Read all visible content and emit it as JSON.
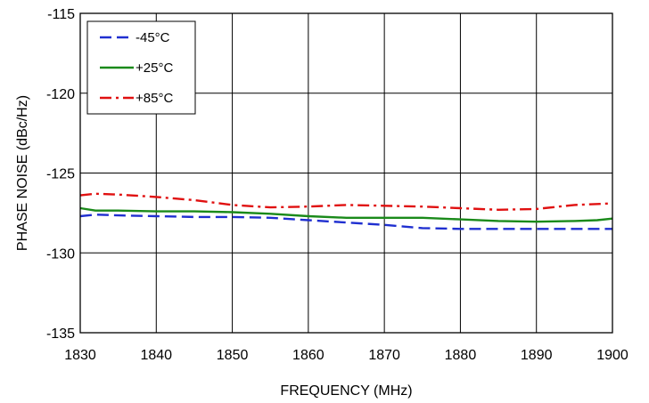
{
  "chart_data": {
    "type": "line",
    "title": "",
    "xlabel": "FREQUENCY (MHz)",
    "ylabel": "PHASE NOISE  (dBc/Hz)",
    "xlim": [
      1830,
      1900
    ],
    "ylim": [
      -135,
      -115
    ],
    "xticks": [
      1830,
      1840,
      1850,
      1860,
      1870,
      1880,
      1890,
      1900
    ],
    "yticks": [
      -115,
      -120,
      -125,
      -130,
      -135
    ],
    "grid": true,
    "legend_position": "top-left",
    "series": [
      {
        "name": "-45°C",
        "color": "#1f2fd0",
        "dash": "dashed",
        "x": [
          1830,
          1832,
          1835,
          1840,
          1845,
          1850,
          1855,
          1860,
          1865,
          1870,
          1875,
          1880,
          1885,
          1890,
          1895,
          1900
        ],
        "y": [
          -127.7,
          -127.6,
          -127.65,
          -127.7,
          -127.75,
          -127.75,
          -127.8,
          -127.95,
          -128.1,
          -128.25,
          -128.45,
          -128.5,
          -128.5,
          -128.5,
          -128.5,
          -128.5
        ]
      },
      {
        "name": "+25°C",
        "color": "#1a8a1a",
        "dash": "solid",
        "x": [
          1830,
          1832,
          1835,
          1840,
          1845,
          1850,
          1855,
          1860,
          1865,
          1870,
          1875,
          1880,
          1885,
          1890,
          1895,
          1898,
          1900
        ],
        "y": [
          -127.2,
          -127.35,
          -127.35,
          -127.4,
          -127.4,
          -127.45,
          -127.55,
          -127.7,
          -127.8,
          -127.8,
          -127.8,
          -127.9,
          -128.0,
          -128.05,
          -128.0,
          -127.95,
          -127.85
        ]
      },
      {
        "name": "+85°C",
        "color": "#e01010",
        "dash": "dashdot",
        "x": [
          1830,
          1832,
          1835,
          1840,
          1845,
          1850,
          1855,
          1860,
          1865,
          1870,
          1875,
          1880,
          1885,
          1890,
          1895,
          1900
        ],
        "y": [
          -126.4,
          -126.3,
          -126.35,
          -126.5,
          -126.7,
          -127.0,
          -127.15,
          -127.1,
          -127.0,
          -127.05,
          -127.1,
          -127.2,
          -127.3,
          -127.25,
          -127.0,
          -126.9
        ]
      }
    ]
  }
}
